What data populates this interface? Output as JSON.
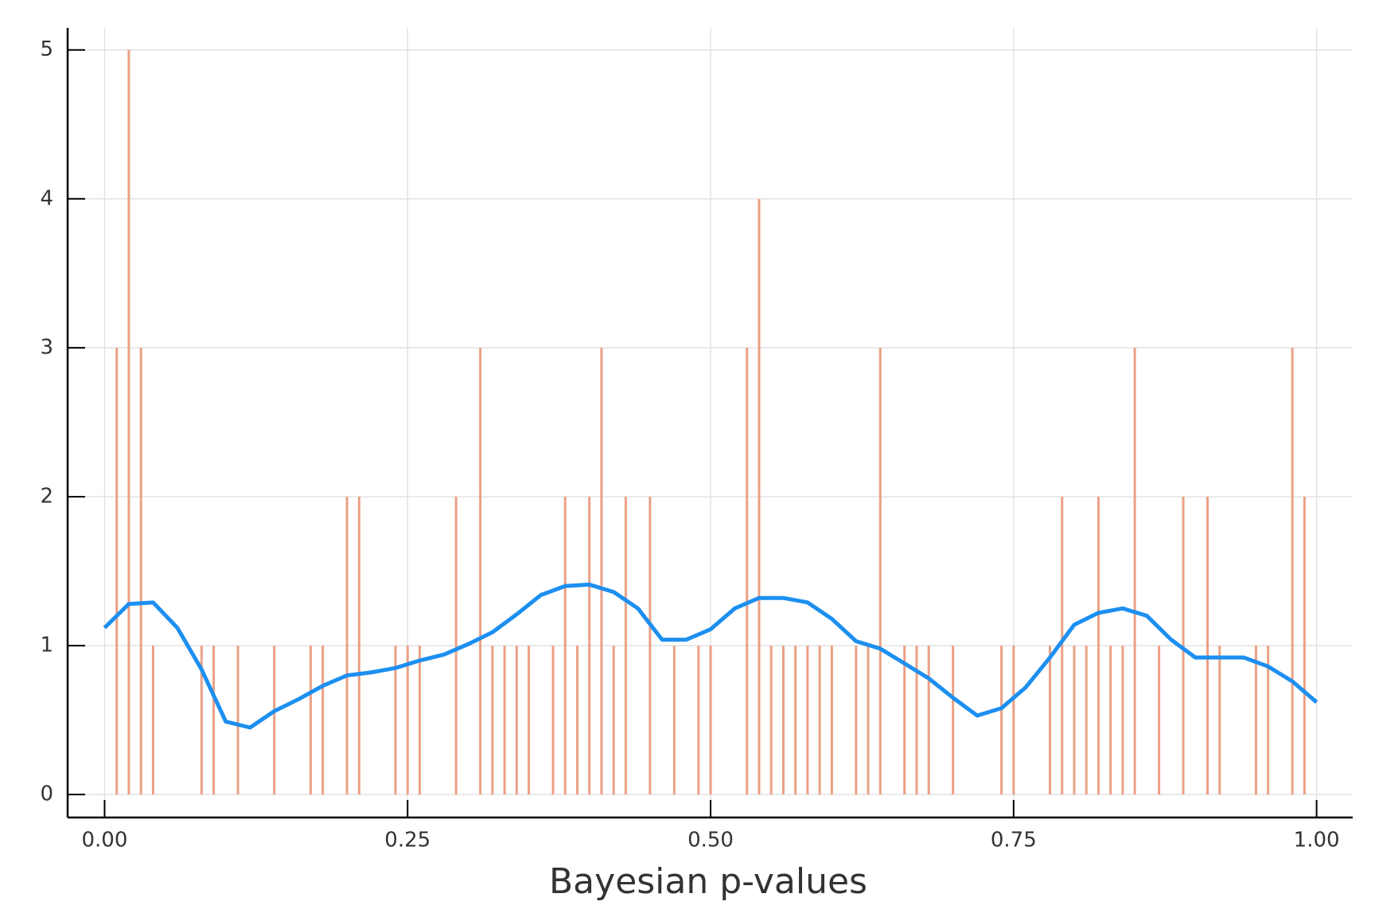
{
  "chart_data": {
    "type": "bar",
    "xlabel": "Bayesian p-values",
    "xlim": [
      -0.0305,
      1.0298
    ],
    "ylim": [
      -0.154,
      5.148
    ],
    "xticks": [
      {
        "value": 0,
        "label": "0.00"
      },
      {
        "value": 0.25,
        "label": "0.25"
      },
      {
        "value": 0.5,
        "label": "0.50"
      },
      {
        "value": 0.75,
        "label": "0.75"
      },
      {
        "value": 1,
        "label": "1.00"
      }
    ],
    "yticks": [
      0,
      1,
      2,
      3,
      4,
      5
    ],
    "grid": true,
    "series": [
      {
        "type": "bar",
        "color": "#eba085",
        "x": [
          0.01,
          0.02,
          0.03,
          0.04,
          0.08,
          0.09,
          0.11,
          0.14,
          0.17,
          0.18,
          0.2,
          0.21,
          0.24,
          0.25,
          0.26,
          0.29,
          0.31,
          0.32,
          0.33,
          0.34,
          0.35,
          0.37,
          0.38,
          0.39,
          0.4,
          0.41,
          0.42,
          0.43,
          0.45,
          0.47,
          0.49,
          0.5,
          0.53,
          0.54,
          0.55,
          0.56,
          0.57,
          0.58,
          0.59,
          0.6,
          0.62,
          0.63,
          0.64,
          0.66,
          0.67,
          0.68,
          0.7,
          0.74,
          0.75,
          0.78,
          0.79,
          0.8,
          0.81,
          0.82,
          0.83,
          0.84,
          0.85,
          0.87,
          0.89,
          0.91,
          0.92,
          0.95,
          0.96,
          0.98,
          0.99
        ],
        "values": [
          3,
          5,
          3,
          1,
          1,
          1,
          1,
          1,
          1,
          1,
          2,
          2,
          1,
          1,
          1,
          2,
          3,
          1,
          1,
          1,
          1,
          1,
          2,
          1,
          2,
          3,
          1,
          2,
          2,
          1,
          1,
          1,
          3,
          4,
          1,
          1,
          1,
          1,
          1,
          1,
          1,
          1,
          3,
          1,
          1,
          1,
          1,
          1,
          1,
          1,
          2,
          1,
          1,
          2,
          1,
          1,
          3,
          1,
          2,
          2,
          1,
          1,
          1,
          3,
          2
        ]
      },
      {
        "type": "line",
        "color": "#1d8ff0",
        "x": [
          0,
          0.02,
          0.04,
          0.06,
          0.08,
          0.1,
          0.12,
          0.14,
          0.16,
          0.18,
          0.2,
          0.22,
          0.24,
          0.26,
          0.28,
          0.3,
          0.32,
          0.34,
          0.36,
          0.38,
          0.4,
          0.42,
          0.44,
          0.46,
          0.48,
          0.5,
          0.52,
          0.54,
          0.56,
          0.58,
          0.6,
          0.62,
          0.64,
          0.66,
          0.68,
          0.7,
          0.72,
          0.74,
          0.76,
          0.78,
          0.8,
          0.82,
          0.84,
          0.86,
          0.88,
          0.9,
          0.92,
          0.94,
          0.96,
          0.98,
          1.0
        ],
        "values": [
          1.12,
          1.28,
          1.29,
          1.12,
          0.84,
          0.49,
          0.45,
          0.56,
          0.64,
          0.73,
          0.8,
          0.82,
          0.85,
          0.9,
          0.94,
          1.01,
          1.09,
          1.21,
          1.34,
          1.4,
          1.41,
          1.36,
          1.25,
          1.04,
          1.04,
          1.11,
          1.25,
          1.32,
          1.32,
          1.29,
          1.18,
          1.03,
          0.98,
          0.88,
          0.78,
          0.65,
          0.53,
          0.58,
          0.72,
          0.92,
          1.14,
          1.22,
          1.25,
          1.2,
          1.04,
          0.92,
          0.92,
          0.92,
          0.86,
          0.76,
          0.62
        ]
      }
    ]
  }
}
